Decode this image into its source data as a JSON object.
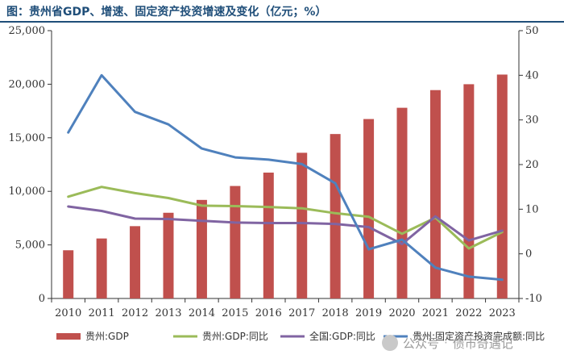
{
  "title": "图：贵州省GDP、增速、固定资产投资增速及变化（亿元；%）",
  "watermark": {
    "prefix": "公众号",
    "sep": "·",
    "name": "债市奇遇记"
  },
  "colors": {
    "bar": "#c0504d",
    "gz_gdp_growth": "#9bbb59",
    "cn_gdp_growth": "#8064a2",
    "gz_fai_growth": "#4f81bd",
    "axis": "#333333",
    "title": "#1f4e79"
  },
  "chart_data": {
    "type": "bar+line",
    "categories": [
      "2010",
      "2011",
      "2012",
      "2013",
      "2014",
      "2015",
      "2016",
      "2017",
      "2018",
      "2019",
      "2020",
      "2021",
      "2022",
      "2023"
    ],
    "left_axis": {
      "min": 0,
      "max": 25000,
      "ticks": [
        "0",
        "5,000",
        "10,000",
        "15,000",
        "20,000",
        "25,000"
      ]
    },
    "right_axis": {
      "min": -10,
      "max": 50,
      "ticks": [
        "-10",
        "0",
        "10",
        "20",
        "30",
        "40",
        "50"
      ]
    },
    "series": [
      {
        "name": "贵州:GDP",
        "type": "bar",
        "axis": "left",
        "values": [
          4500,
          5600,
          6750,
          8000,
          9200,
          10500,
          11750,
          13600,
          15350,
          16750,
          17800,
          19450,
          20000,
          20900
        ]
      },
      {
        "name": "贵州:GDP:同比",
        "type": "line",
        "axis": "right",
        "values": [
          12.8,
          15.0,
          13.6,
          12.5,
          10.8,
          10.7,
          10.5,
          10.2,
          9.1,
          8.3,
          4.5,
          8.1,
          1.2,
          4.9
        ]
      },
      {
        "name": "全国:GDP:同比",
        "type": "line",
        "axis": "right",
        "values": [
          10.6,
          9.6,
          7.9,
          7.8,
          7.4,
          7.0,
          6.9,
          6.9,
          6.7,
          6.0,
          2.2,
          8.4,
          3.0,
          5.2
        ]
      },
      {
        "name": "贵州:固定资产投资完成额:同比",
        "type": "line",
        "axis": "right",
        "values": [
          27.2,
          40.0,
          31.8,
          29.0,
          23.6,
          21.6,
          21.1,
          20.1,
          15.8,
          1.0,
          3.2,
          -3.1,
          -5.1,
          -5.8
        ]
      }
    ]
  }
}
